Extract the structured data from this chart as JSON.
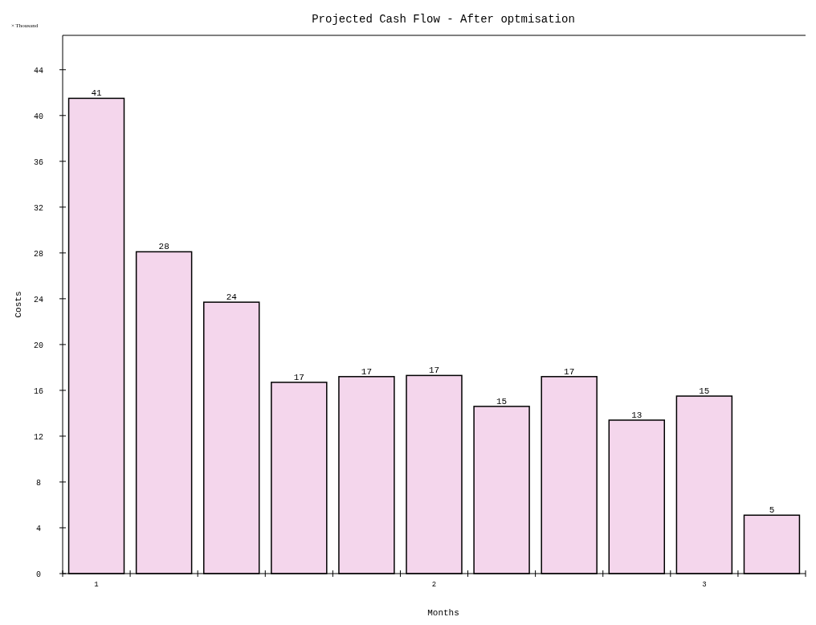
{
  "chart_data": {
    "type": "bar",
    "title": "Projected Cash Flow - After optmisation",
    "xlabel": "Months",
    "ylabel": "Costs",
    "annotations": [
      "× Thousand"
    ],
    "categories": [
      "1",
      null,
      null,
      null,
      null,
      "2",
      null,
      null,
      null,
      "3",
      null
    ],
    "values": [
      41.5,
      28.1,
      23.7,
      16.7,
      17.2,
      17.3,
      14.6,
      17.2,
      13.4,
      15.5,
      5.1
    ],
    "value_labels": [
      "41",
      "28",
      "24",
      "17",
      "17",
      "17",
      "15",
      "17",
      "13",
      "15",
      "5"
    ],
    "color": "#cc44aa",
    "ylim": [
      0,
      47
    ],
    "yticks": [
      0,
      4,
      8,
      12,
      16,
      20,
      24,
      28,
      32,
      36,
      40,
      44
    ],
    "grid": false
  }
}
